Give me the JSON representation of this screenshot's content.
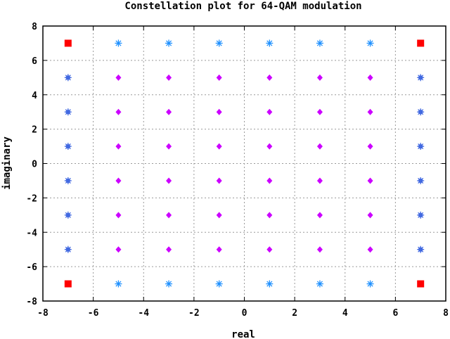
{
  "chart_data": {
    "type": "scatter",
    "title": "Constellation plot for 64-QAM modulation",
    "xlabel": "real",
    "ylabel": "imaginary",
    "xlim": [
      -8,
      8
    ],
    "ylim": [
      -8,
      8
    ],
    "xticks": [
      -8,
      -6,
      -4,
      -2,
      0,
      2,
      4,
      6,
      8
    ],
    "yticks": [
      -8,
      -6,
      -4,
      -2,
      0,
      2,
      4,
      6,
      8
    ],
    "grid": true,
    "series": [
      {
        "marker": "square",
        "color": "#ff0000",
        "points": [
          [
            -7,
            7
          ],
          [
            7,
            7
          ],
          [
            -7,
            -7
          ],
          [
            7,
            -7
          ]
        ]
      },
      {
        "marker": "asterisk",
        "color": "#1e90ff",
        "points": [
          [
            -5,
            7
          ],
          [
            -3,
            7
          ],
          [
            -1,
            7
          ],
          [
            1,
            7
          ],
          [
            3,
            7
          ],
          [
            5,
            7
          ],
          [
            -5,
            -7
          ],
          [
            -3,
            -7
          ],
          [
            -1,
            -7
          ],
          [
            1,
            -7
          ],
          [
            3,
            -7
          ],
          [
            5,
            -7
          ]
        ]
      },
      {
        "marker": "asterisk-dot",
        "color": "#4169e1",
        "points": [
          [
            -7,
            5
          ],
          [
            -7,
            3
          ],
          [
            -7,
            1
          ],
          [
            -7,
            -1
          ],
          [
            -7,
            -3
          ],
          [
            -7,
            -5
          ],
          [
            7,
            5
          ],
          [
            7,
            3
          ],
          [
            7,
            1
          ],
          [
            7,
            -1
          ],
          [
            7,
            -3
          ],
          [
            7,
            -5
          ]
        ]
      },
      {
        "marker": "diamond",
        "color": "#cc00ff",
        "points": [
          [
            -5,
            5
          ],
          [
            -3,
            5
          ],
          [
            -1,
            5
          ],
          [
            1,
            5
          ],
          [
            3,
            5
          ],
          [
            5,
            5
          ],
          [
            -5,
            3
          ],
          [
            -3,
            3
          ],
          [
            -1,
            3
          ],
          [
            1,
            3
          ],
          [
            3,
            3
          ],
          [
            5,
            3
          ],
          [
            -5,
            1
          ],
          [
            -3,
            1
          ],
          [
            -1,
            1
          ],
          [
            1,
            1
          ],
          [
            3,
            1
          ],
          [
            5,
            1
          ],
          [
            -5,
            -1
          ],
          [
            -3,
            -1
          ],
          [
            -1,
            -1
          ],
          [
            1,
            -1
          ],
          [
            3,
            -1
          ],
          [
            5,
            -1
          ],
          [
            -5,
            -3
          ],
          [
            -3,
            -3
          ],
          [
            -1,
            -3
          ],
          [
            1,
            -3
          ],
          [
            3,
            -3
          ],
          [
            5,
            -3
          ],
          [
            -5,
            -5
          ],
          [
            -3,
            -5
          ],
          [
            -1,
            -5
          ],
          [
            1,
            -5
          ],
          [
            3,
            -5
          ],
          [
            5,
            -5
          ]
        ]
      }
    ]
  }
}
